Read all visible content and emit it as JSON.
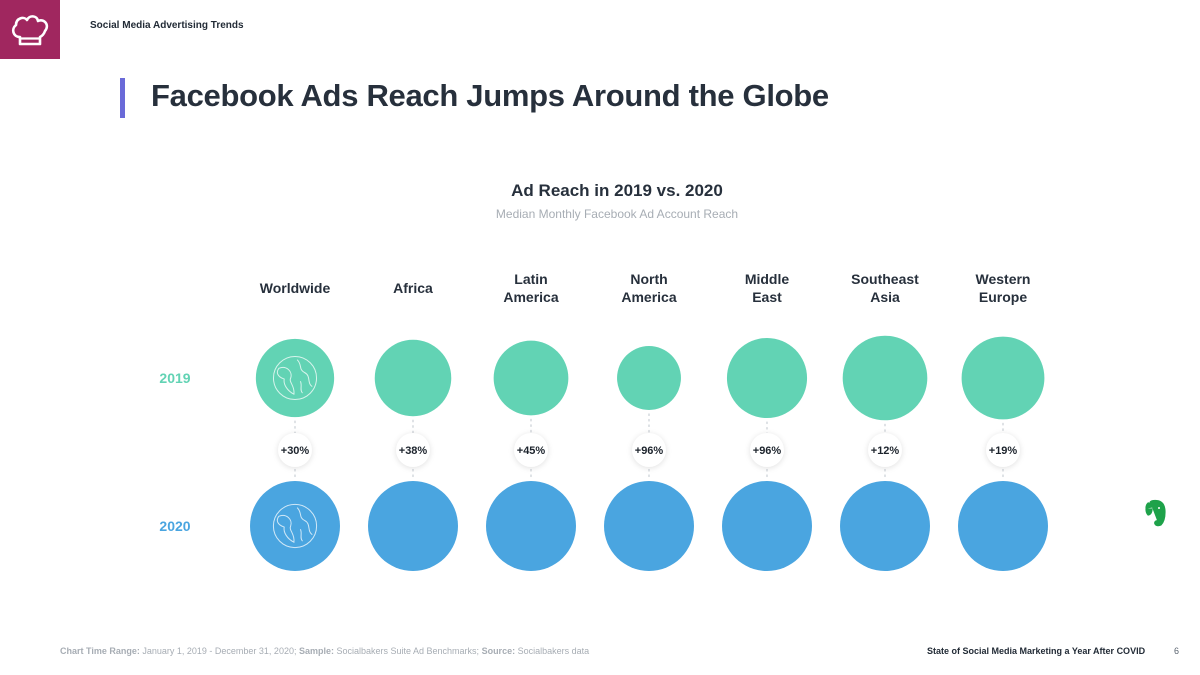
{
  "header": {
    "report_section": "Social Media Advertising Trends",
    "logo_icon": "chef-hat-icon",
    "logo_color": "#a0275f"
  },
  "page_title": "Facebook Ads Reach Jumps Around the Globe",
  "colors": {
    "accent": "#6a6ad8",
    "year_2019": "#62d3b4",
    "year_2020": "#4aa5e0"
  },
  "chart_data": {
    "type": "bubble",
    "title": "Ad Reach in 2019 vs. 2020",
    "subtitle": "Median Monthly Facebook Ad Account Reach",
    "row_labels": [
      "2019",
      "2020"
    ],
    "categories": [
      {
        "lines": [
          "Worldwide"
        ],
        "change": "+30%",
        "r2019": 0.87,
        "r2020": 1.0,
        "icon": "globe-icon"
      },
      {
        "lines": [
          "Africa"
        ],
        "change": "+38%",
        "r2019": 0.85,
        "r2020": 1.0
      },
      {
        "lines": [
          "Latin",
          "America"
        ],
        "change": "+45%",
        "r2019": 0.83,
        "r2020": 1.0
      },
      {
        "lines": [
          "North",
          "America"
        ],
        "change": "+96%",
        "r2019": 0.71,
        "r2020": 1.0
      },
      {
        "lines": [
          "Middle",
          "East"
        ],
        "change": "+96%",
        "r2019": 0.89,
        "r2020": 1.0
      },
      {
        "lines": [
          "Southeast",
          "Asia"
        ],
        "change": "+12%",
        "r2019": 0.94,
        "r2020": 1.0
      },
      {
        "lines": [
          "Western",
          "Europe"
        ],
        "change": "+19%",
        "r2019": 0.92,
        "r2020": 1.0
      }
    ]
  },
  "footer": {
    "range_label": "Chart Time Range:",
    "range_value": " January 1, 2019 - December 31, 2020;",
    "sample_label": " Sample:",
    "sample_value": " Socialbakers Suite Ad Benchmarks;",
    "source_label": " Source:",
    "source_value": " Socialbakers data",
    "report_name": "State of Social Media Marketing a Year After COVID",
    "page_number": "6"
  },
  "side_icon": "evernote-elephant-icon"
}
